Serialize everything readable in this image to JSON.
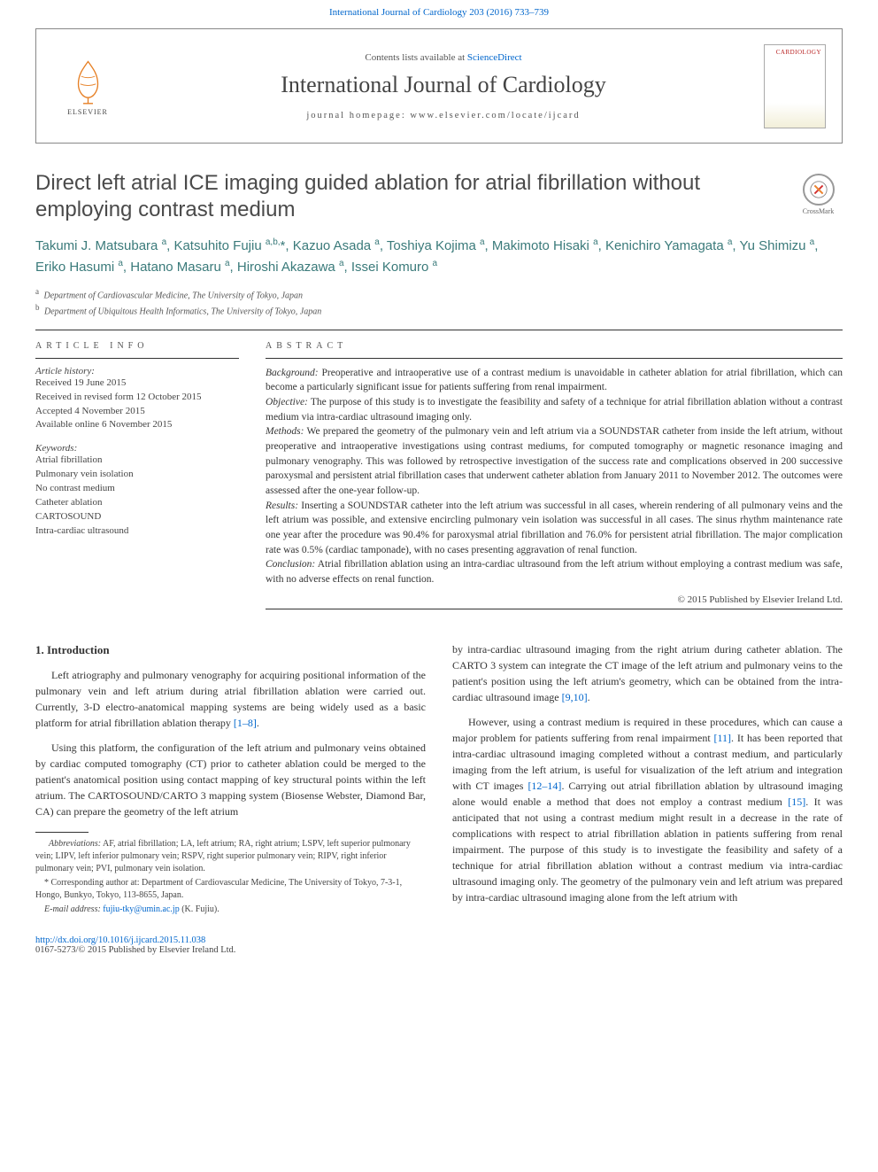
{
  "top_link": {
    "text": "International Journal of Cardiology 203 (2016) 733–739"
  },
  "header": {
    "elsevier_label": "ELSEVIER",
    "contents_prefix": "Contents lists available at ",
    "contents_link": "ScienceDirect",
    "journal_name": "International Journal of Cardiology",
    "homepage_prefix": "journal homepage: ",
    "homepage_url": "www.elsevier.com/locate/ijcard",
    "cover_label": "CARDIOLOGY"
  },
  "title": "Direct left atrial ICE imaging guided ablation for atrial fibrillation without employing contrast medium",
  "crossmark_label": "CrossMark",
  "authors_html": "Takumi J. Matsubara <sup>a</sup>, Katsuhito Fujiu <sup>a,b,</sup>*, Kazuo Asada <sup>a</sup>, Toshiya Kojima <sup>a</sup>, Makimoto Hisaki <sup>a</sup>, Kenichiro Yamagata <sup>a</sup>, Yu Shimizu <sup>a</sup>, Eriko Hasumi <sup>a</sup>, Hatano Masaru <sup>a</sup>, Hiroshi Akazawa <sup>a</sup>, Issei Komuro <sup>a</sup>",
  "affiliations": [
    {
      "sup": "a",
      "text": "Department of Cardiovascular Medicine, The University of Tokyo, Japan"
    },
    {
      "sup": "b",
      "text": "Department of Ubiquitous Health Informatics, The University of Tokyo, Japan"
    }
  ],
  "article_info": {
    "label": "ARTICLE INFO",
    "history_label": "Article history:",
    "history": [
      "Received 19 June 2015",
      "Received in revised form 12 October 2015",
      "Accepted 4 November 2015",
      "Available online 6 November 2015"
    ],
    "keywords_label": "Keywords:",
    "keywords": [
      "Atrial fibrillation",
      "Pulmonary vein isolation",
      "No contrast medium",
      "Catheter ablation",
      "CARTOSOUND",
      "Intra-cardiac ultrasound"
    ]
  },
  "abstract": {
    "label": "ABSTRACT",
    "paragraphs": [
      {
        "lead": "Background:",
        "text": " Preoperative and intraoperative use of a contrast medium is unavoidable in catheter ablation for atrial fibrillation, which can become a particularly significant issue for patients suffering from renal impairment."
      },
      {
        "lead": "Objective:",
        "text": " The purpose of this study is to investigate the feasibility and safety of a technique for atrial fibrillation ablation without a contrast medium via intra-cardiac ultrasound imaging only."
      },
      {
        "lead": "Methods:",
        "text": " We prepared the geometry of the pulmonary vein and left atrium via a SOUNDSTAR catheter from inside the left atrium, without preoperative and intraoperative investigations using contrast mediums, for computed tomography or magnetic resonance imaging and pulmonary venography. This was followed by retrospective investigation of the success rate and complications observed in 200 successive paroxysmal and persistent atrial fibrillation cases that underwent catheter ablation from January 2011 to November 2012. The outcomes were assessed after the one-year follow-up."
      },
      {
        "lead": "Results:",
        "text": " Inserting a SOUNDSTAR catheter into the left atrium was successful in all cases, wherein rendering of all pulmonary veins and the left atrium was possible, and extensive encircling pulmonary vein isolation was successful in all cases. The sinus rhythm maintenance rate one year after the procedure was 90.4% for paroxysmal atrial fibrillation and 76.0% for persistent atrial fibrillation. The major complication rate was 0.5% (cardiac tamponade), with no cases presenting aggravation of renal function."
      },
      {
        "lead": "Conclusion:",
        "text": " Atrial fibrillation ablation using an intra-cardiac ultrasound from the left atrium without employing a contrast medium was safe, with no adverse effects on renal function."
      }
    ],
    "copyright": "© 2015 Published by Elsevier Ireland Ltd."
  },
  "body": {
    "section_title": "1. Introduction",
    "left_paras": [
      "Left atriography and pulmonary venography for acquiring positional information of the pulmonary vein and left atrium during atrial fibrillation ablation were carried out. Currently, 3-D electro-anatomical mapping systems are being widely used as a basic platform for atrial fibrillation ablation therapy [1–8].",
      "Using this platform, the configuration of the left atrium and pulmonary veins obtained by cardiac computed tomography (CT) prior to catheter ablation could be merged to the patient's anatomical position using contact mapping of key structural points within the left atrium. The CARTOSOUND/CARTO 3 mapping system (Biosense Webster, Diamond Bar, CA) can prepare the geometry of the left atrium"
    ],
    "right_paras": [
      "by intra-cardiac ultrasound imaging from the right atrium during catheter ablation. The CARTO 3 system can integrate the CT image of the left atrium and pulmonary veins to the patient's position using the left atrium's geometry, which can be obtained from the intra-cardiac ultrasound image [9,10].",
      "However, using a contrast medium is required in these procedures, which can cause a major problem for patients suffering from renal impairment [11]. It has been reported that intra-cardiac ultrasound imaging completed without a contrast medium, and particularly imaging from the left atrium, is useful for visualization of the left atrium and integration with CT images [12–14]. Carrying out atrial fibrillation ablation by ultrasound imaging alone would enable a method that does not employ a contrast medium [15]. It was anticipated that not using a contrast medium might result in a decrease in the rate of complications with respect to atrial fibrillation ablation in patients suffering from renal impairment. The purpose of this study is to investigate the feasibility and safety of a technique for atrial fibrillation ablation without a contrast medium via intra-cardiac ultrasound imaging only. The geometry of the pulmonary vein and left atrium was prepared by intra-cardiac ultrasound imaging alone from the left atrium with"
    ],
    "refs": {
      "r1": "[1–8]",
      "r2": "[9,10]",
      "r3": "[11]",
      "r4": "[12–14]",
      "r5": "[15]"
    }
  },
  "footnotes": {
    "abbrev_label": "Abbreviations:",
    "abbrev_text": " AF, atrial fibrillation; LA, left atrium; RA, right atrium; LSPV, left superior pulmonary vein; LIPV, left inferior pulmonary vein; RSPV, right superior pulmonary vein; RIPV, right inferior pulmonary vein; PVI, pulmonary vein isolation.",
    "corr_label": "*",
    "corr_text": " Corresponding author at: Department of Cardiovascular Medicine, The University of Tokyo, 7-3-1, Hongo, Bunkyo, Tokyo, 113-8655, Japan.",
    "email_label": "E-mail address: ",
    "email": "fujiu-tky@umin.ac.jp",
    "email_suffix": " (K. Fujiu)."
  },
  "footer": {
    "doi": "http://dx.doi.org/10.1016/j.ijcard.2015.11.038",
    "issn_line": "0167-5273/© 2015 Published by Elsevier Ireland Ltd."
  },
  "colors": {
    "link": "#0066cc",
    "author": "#3a7a7a",
    "rule": "#333333"
  }
}
